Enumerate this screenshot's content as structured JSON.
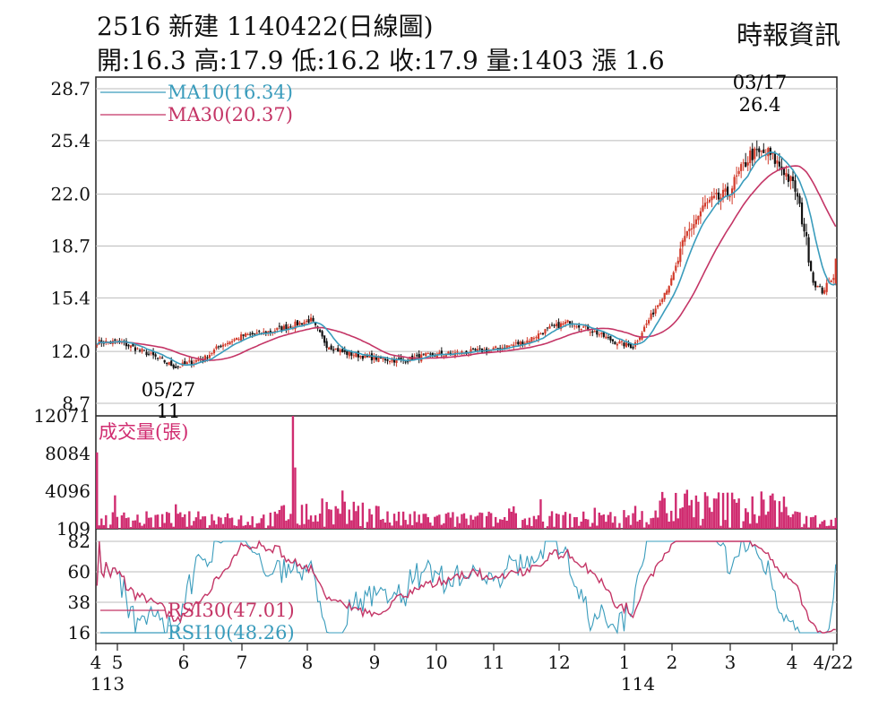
{
  "header": {
    "title": "2516  新建 1140422(日線圖)",
    "ohlc": "開:16.3 高:17.9 低:16.2 收:17.9 量:1403 漲 1.6",
    "brand": "時報資訊"
  },
  "colors": {
    "ma10": "#3a9cbc",
    "ma30": "#c43566",
    "volume": "#d02c70",
    "rsi30": "#c43566",
    "rsi10": "#3a9cbc",
    "up": "#d23b2b",
    "down": "#111111",
    "grid": "#bbbbbb"
  },
  "chart_data": [
    {
      "type": "candlestick",
      "y_ticks": [
        "28.7",
        "25.4",
        "22.0",
        "18.7",
        "15.4",
        "12.0",
        "8.7"
      ],
      "ylim": [
        8.7,
        28.7
      ],
      "legend": [
        "MA10(16.34)",
        "MA30(20.37)"
      ],
      "annotations": [
        {
          "date": "03/17",
          "value": "26.4",
          "label_type": "high"
        },
        {
          "date": "05/27",
          "value": "11",
          "label_type": "low"
        }
      ],
      "last": {
        "open": 16.3,
        "high": 17.9,
        "low": 16.2,
        "close": 17.9
      },
      "price_profile": [
        [
          0,
          12.6
        ],
        [
          10,
          12.6
        ],
        [
          22,
          11.9
        ],
        [
          35,
          11.0
        ],
        [
          48,
          11.6
        ],
        [
          55,
          12.4
        ],
        [
          65,
          13.0
        ],
        [
          75,
          13.2
        ],
        [
          85,
          13.6
        ],
        [
          95,
          14.0
        ],
        [
          102,
          12.4
        ],
        [
          110,
          11.9
        ],
        [
          122,
          11.6
        ],
        [
          135,
          11.4
        ],
        [
          145,
          11.7
        ],
        [
          160,
          11.9
        ],
        [
          175,
          12.1
        ],
        [
          190,
          12.6
        ],
        [
          200,
          13.4
        ],
        [
          210,
          13.9
        ],
        [
          220,
          13.3
        ],
        [
          230,
          12.6
        ],
        [
          238,
          12.3
        ],
        [
          245,
          14.0
        ],
        [
          255,
          16.5
        ],
        [
          262,
          19.5
        ],
        [
          270,
          21.3
        ],
        [
          280,
          22.0
        ],
        [
          290,
          24.5
        ],
        [
          298,
          24.6
        ],
        [
          305,
          23.5
        ],
        [
          310,
          22.3
        ],
        [
          314,
          19.8
        ],
        [
          318,
          16.4
        ],
        [
          322,
          15.8
        ],
        [
          328,
          17.0
        ]
      ]
    },
    {
      "type": "bar",
      "name": "成交量(張)",
      "y_ticks": [
        "12071",
        "8084",
        "4096",
        "109"
      ],
      "ylim": [
        109,
        12071
      ],
      "spikes": [
        {
          "day": 0,
          "value": 8200
        },
        {
          "day": 87,
          "value": 12071
        },
        {
          "day": 88,
          "value": 6600
        }
      ]
    },
    {
      "type": "line",
      "y_ticks": [
        "82",
        "60",
        "38",
        "16"
      ],
      "ylim": [
        16,
        82
      ],
      "series": [
        {
          "name": "RSI30(47.01)"
        },
        {
          "name": "RSI10(48.26)"
        }
      ]
    }
  ],
  "x_axis": {
    "months": [
      "4",
      "5",
      "6",
      "7",
      "8",
      "9",
      "10",
      "11",
      "12",
      "1",
      "2",
      "3",
      "4",
      "4/22"
    ],
    "years": [
      "113",
      "114"
    ]
  }
}
